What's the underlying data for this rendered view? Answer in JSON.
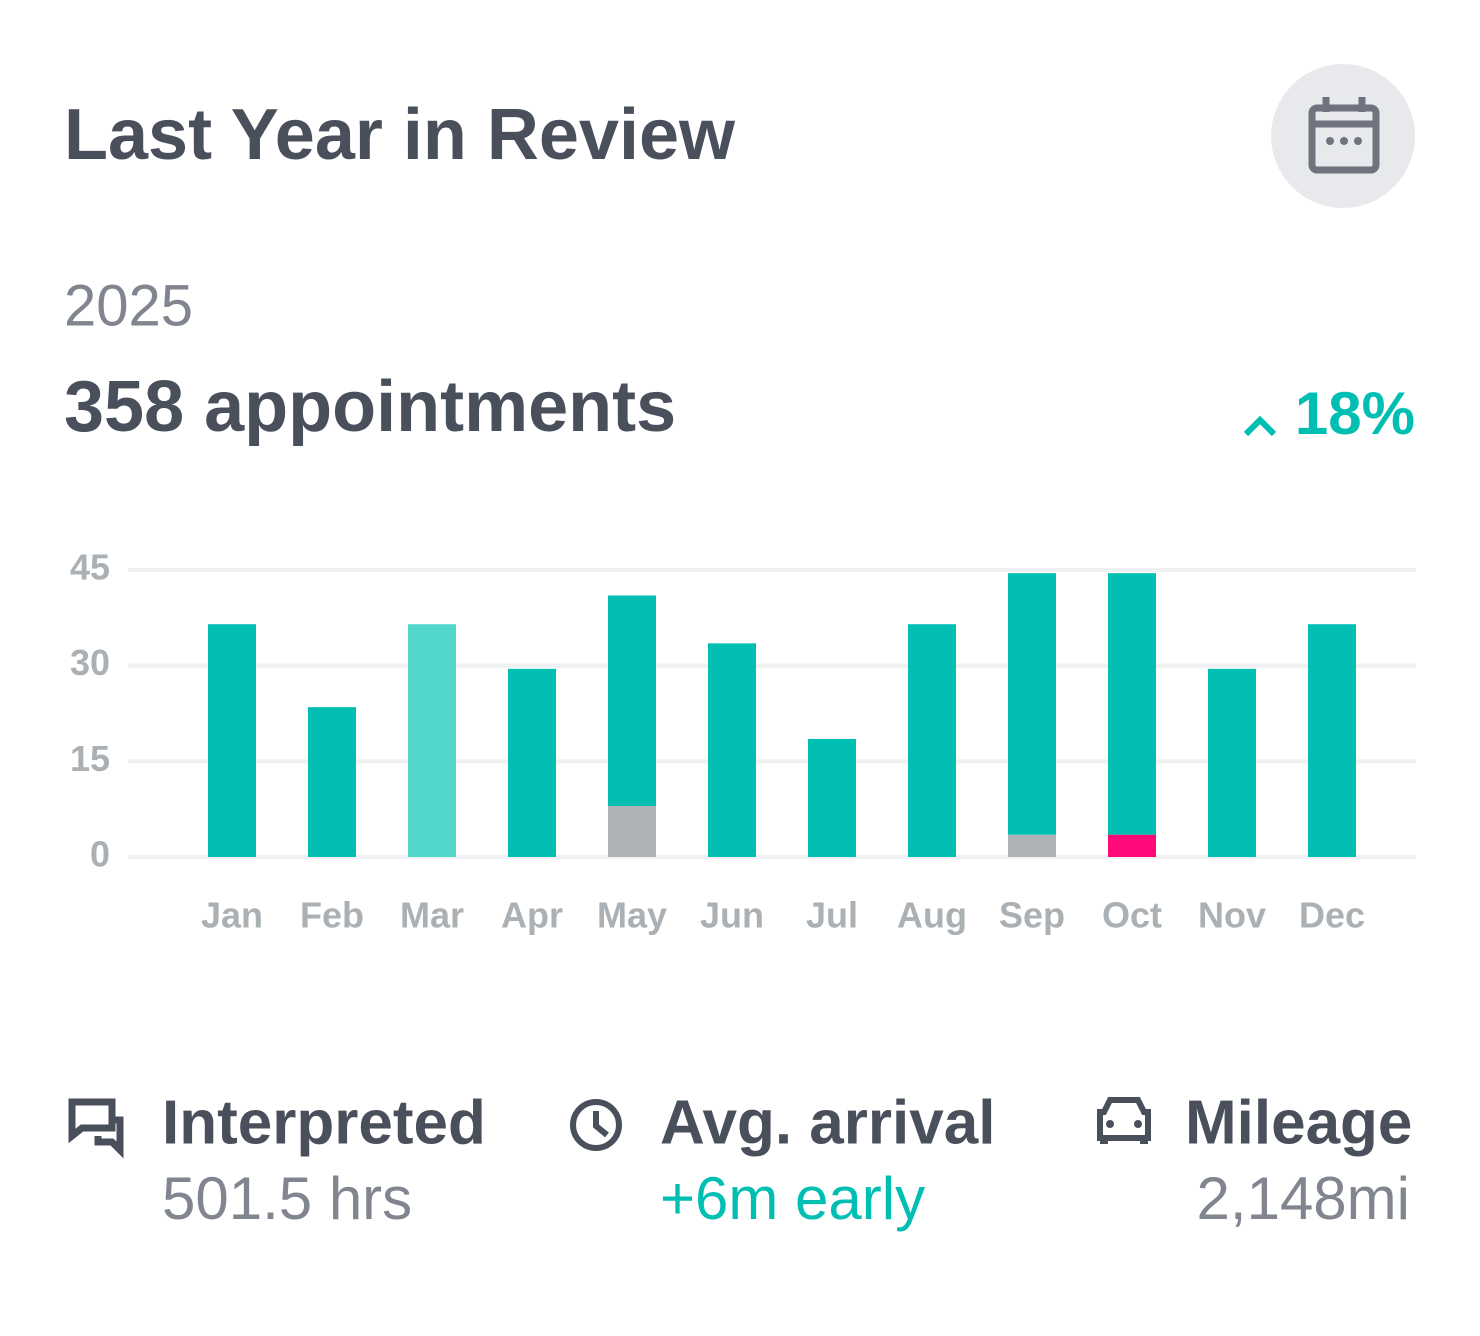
{
  "header": {
    "title": "Last Year in Review",
    "year": "2025",
    "total": "358 appointments",
    "change": "18%"
  },
  "chart_data": {
    "type": "bar",
    "stacked": true,
    "categories": [
      "Jan",
      "Feb",
      "Mar",
      "Apr",
      "May",
      "Jun",
      "Jul",
      "Aug",
      "Sep",
      "Oct",
      "Nov",
      "Dec"
    ],
    "series": [
      {
        "color": "#aeb3b5",
        "values": [
          null,
          null,
          null,
          null,
          8,
          null,
          null,
          null,
          3.5,
          null,
          null,
          null
        ]
      },
      {
        "color": "#ff0a78",
        "values": [
          null,
          null,
          null,
          null,
          null,
          null,
          null,
          null,
          null,
          3.5,
          null,
          null
        ]
      },
      {
        "color": "#00bfb2",
        "values": [
          36.5,
          23.5,
          null,
          29.5,
          33,
          33.5,
          18.5,
          36.5,
          41,
          41,
          29.5,
          36.5
        ]
      },
      {
        "color": "#52d6cb",
        "values": [
          null,
          null,
          36.5,
          null,
          null,
          null,
          null,
          null,
          null,
          null,
          null,
          null
        ]
      }
    ],
    "ylim": [
      0,
      45
    ],
    "yticks": [
      0,
      15,
      30,
      45
    ],
    "grid": true
  },
  "stats": [
    {
      "label": "Interpreted",
      "value": "501.5 hrs"
    },
    {
      "label": "Avg. arrival",
      "value": "+6m early"
    },
    {
      "label": "Mileage",
      "value": "2,148mi"
    }
  ]
}
